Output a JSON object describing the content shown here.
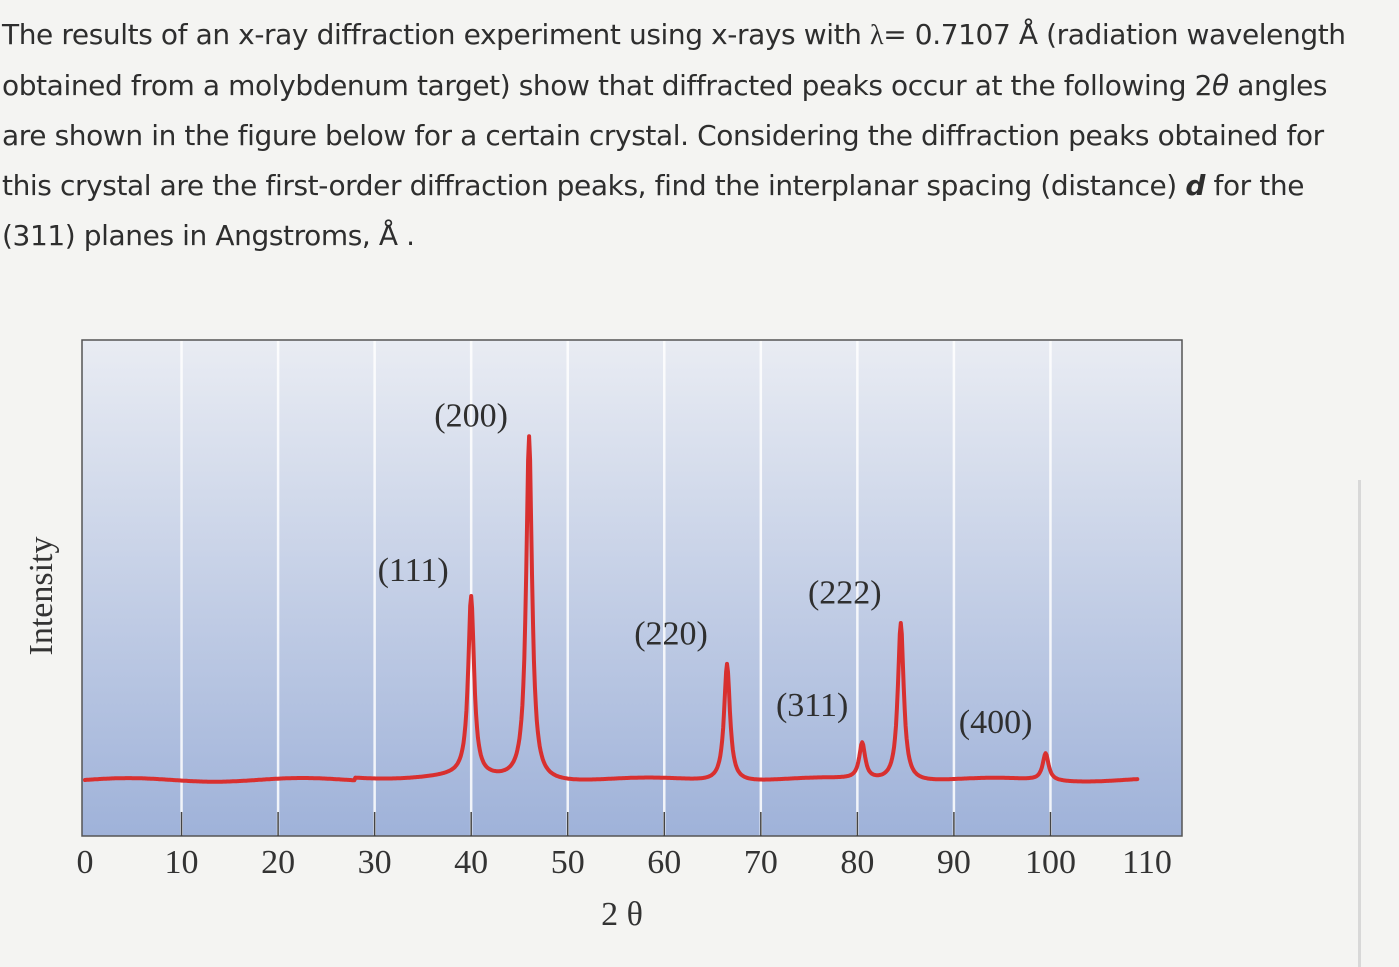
{
  "question": {
    "line1_a": "The results of an x-ray diffraction experiment using x-rays with ",
    "lambda_symbol": "λ",
    "line1_b": "= 0.7107 Å (radiation wavelength",
    "line2_a": "obtained from a molybdenum target) show that diffracted peaks occur at the following 2",
    "theta_symbol": "θ",
    "line2_b": " angles",
    "line3": "are shown in the figure below for a certain crystal. Considering the diffraction peaks obtained for",
    "line4_a": "this crystal are the first-order diffraction peaks, find the interplanar spacing (distance) ",
    "d_symbol": "d",
    "line4_b": " for the",
    "line5": "(311) planes in  Angstroms, Å ."
  },
  "chart_data": {
    "type": "line",
    "title": "",
    "xlabel": "2 θ",
    "ylabel": "Intensity",
    "xlim": [
      0,
      110
    ],
    "x_ticks": [
      "0",
      "10",
      "20",
      "30",
      "40",
      "50",
      "60",
      "70",
      "80",
      "90",
      "100",
      "110"
    ],
    "grid": true,
    "line_color": "#d8302f",
    "background_top": "#e9ecf3",
    "background_bottom": "#9fb2d9",
    "baseline_relative": 0.12,
    "peaks": [
      {
        "label": "(111)",
        "two_theta": 40.0,
        "relative_intensity": 0.52
      },
      {
        "label": "(200)",
        "two_theta": 46.0,
        "relative_intensity": 0.88
      },
      {
        "label": "(220)",
        "two_theta": 66.5,
        "relative_intensity": 0.38
      },
      {
        "label": "(311)",
        "two_theta": 80.5,
        "relative_intensity": 0.2
      },
      {
        "label": "(222)",
        "two_theta": 84.5,
        "relative_intensity": 0.47
      },
      {
        "label": "(400)",
        "two_theta": 99.5,
        "relative_intensity": 0.18
      }
    ]
  }
}
